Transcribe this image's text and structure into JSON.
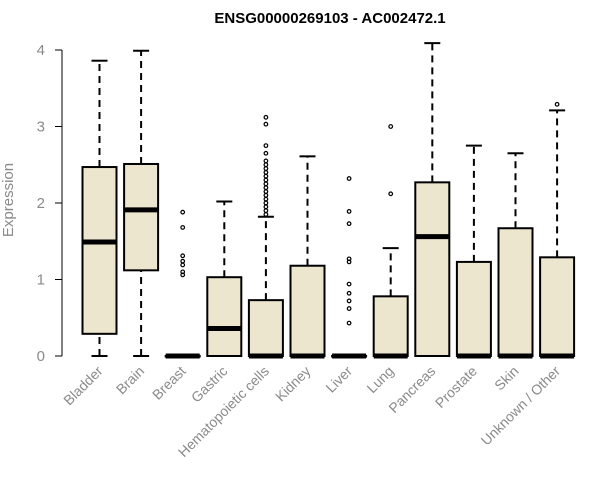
{
  "chart_data": {
    "type": "boxplot",
    "title": "ENSG00000269103 - AC002472.1",
    "xlabel": "",
    "ylabel": "Expression",
    "ylim": [
      0,
      4.1
    ],
    "yticks": [
      "0",
      "1",
      "2",
      "3",
      "4"
    ],
    "grid": false,
    "box_fill": "#ede6cf",
    "box_stroke": "#000000",
    "categories": [
      "Bladder",
      "Brain",
      "Breast",
      "Gastric",
      "Hematopoietic cells",
      "Kidney",
      "Liver",
      "Lung",
      "Pancreas",
      "Prostate",
      "Skin",
      "Unknown / Other"
    ],
    "boxes": [
      {
        "min": 0,
        "q1": 0.29,
        "median": 1.49,
        "q3": 2.47,
        "max": 3.86,
        "outliers": []
      },
      {
        "min": 0,
        "q1": 1.12,
        "median": 1.91,
        "q3": 2.51,
        "max": 3.99,
        "outliers": []
      },
      {
        "min": 0,
        "q1": 0,
        "median": 0,
        "q3": 0,
        "max": 0,
        "outliers": [
          1.06,
          1.1,
          1.19,
          1.24,
          1.31,
          1.68,
          1.88
        ]
      },
      {
        "min": 0,
        "q1": 0,
        "median": 0.36,
        "q3": 1.03,
        "max": 2.02,
        "outliers": []
      },
      {
        "min": 0,
        "q1": 0,
        "median": 0,
        "q3": 0.73,
        "max": 1.82,
        "outliers": [
          1.85,
          1.9,
          1.95,
          2.0,
          2.05,
          2.1,
          2.15,
          2.2,
          2.25,
          2.3,
          2.35,
          2.4,
          2.45,
          2.5,
          2.55,
          2.65,
          2.75,
          3.03,
          3.12
        ]
      },
      {
        "min": 0,
        "q1": 0,
        "median": 0,
        "q3": 1.18,
        "max": 2.61,
        "outliers": []
      },
      {
        "min": 0,
        "q1": 0,
        "median": 0,
        "q3": 0,
        "max": 0,
        "outliers": [
          0.43,
          0.62,
          0.72,
          0.82,
          0.94,
          1.23,
          1.27,
          1.73,
          1.89,
          2.32
        ]
      },
      {
        "min": 0,
        "q1": 0,
        "median": 0,
        "q3": 0.78,
        "max": 1.41,
        "outliers": [
          2.12,
          3.0
        ]
      },
      {
        "min": 0,
        "q1": 0,
        "median": 1.56,
        "q3": 2.27,
        "max": 4.09,
        "outliers": []
      },
      {
        "min": 0,
        "q1": 0,
        "median": 0,
        "q3": 1.23,
        "max": 2.75,
        "outliers": []
      },
      {
        "min": 0,
        "q1": 0,
        "median": 0,
        "q3": 1.67,
        "max": 2.65,
        "outliers": []
      },
      {
        "min": 0,
        "q1": 0,
        "median": 0,
        "q3": 1.29,
        "max": 3.21,
        "outliers": [
          3.29
        ]
      }
    ]
  }
}
